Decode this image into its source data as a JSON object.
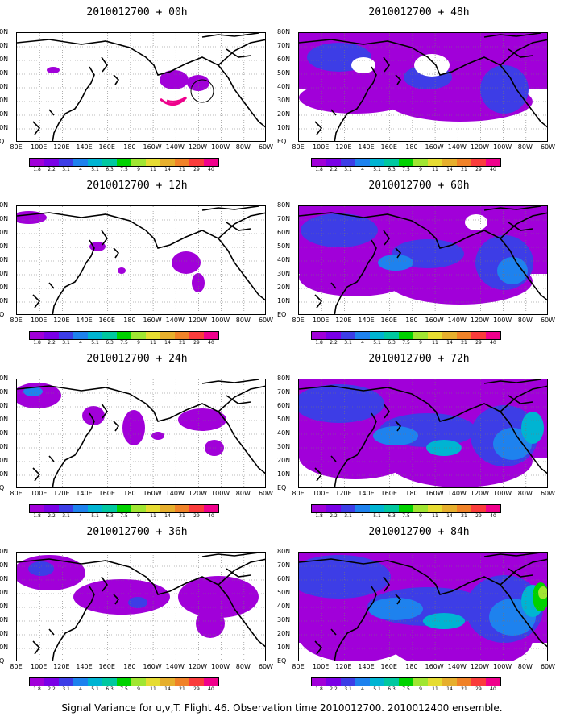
{
  "caption": "Signal Variance for u,v,T. Flight 46. Observation time 2010012700. 2010012400 ensemble.",
  "map": {
    "lat_labels": [
      "80N",
      "70N",
      "60N",
      "50N",
      "40N",
      "30N",
      "20N",
      "10N",
      "EQ"
    ],
    "lon_labels": [
      "80E",
      "100E",
      "120E",
      "140E",
      "160E",
      "180",
      "160W",
      "140W",
      "120W",
      "100W",
      "80W",
      "60W"
    ]
  },
  "colorbar": {
    "labels": [
      "1.8",
      "2.2",
      "3.1",
      "4",
      "5.1",
      "6.3",
      "7.5",
      "9",
      "11",
      "14",
      "21",
      "29",
      "40"
    ],
    "colors": [
      "#a100d9",
      "#7a00e6",
      "#3d3de6",
      "#1e82ee",
      "#00b4d2",
      "#00c8a0",
      "#00d200",
      "#a0e632",
      "#e6dc32",
      "#e6af2d",
      "#f08228",
      "#fa3c3c",
      "#f0008c"
    ]
  },
  "panels": [
    {
      "title": "2010012700 + 00h",
      "level": 0
    },
    {
      "title": "2010012700 + 12h",
      "level": 1
    },
    {
      "title": "2010012700 + 24h",
      "level": 2
    },
    {
      "title": "2010012700 + 36h",
      "level": 3
    },
    {
      "title": "2010012700 + 48h",
      "level": 4
    },
    {
      "title": "2010012700 + 60h",
      "level": 5
    },
    {
      "title": "2010012700 + 72h",
      "level": 6
    },
    {
      "title": "2010012700 + 84h",
      "level": 7
    }
  ]
}
